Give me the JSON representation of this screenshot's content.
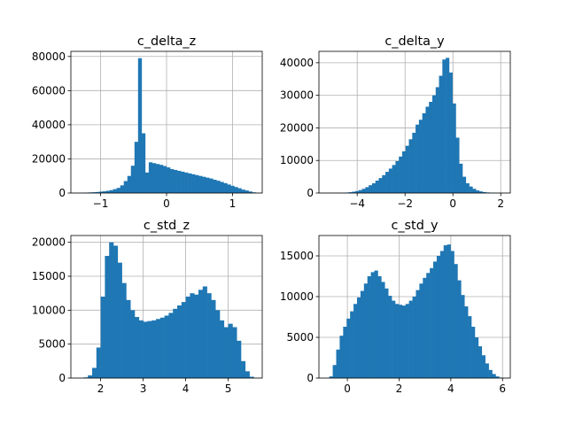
{
  "chart_data": [
    {
      "type": "bar",
      "title": "c_delta_z",
      "xlim": [
        -1.45,
        1.45
      ],
      "ylim": [
        0,
        83000
      ],
      "xticks": [
        -1,
        0,
        1
      ],
      "yticks": [
        0,
        20000,
        40000,
        60000,
        80000
      ],
      "grid": true,
      "bin_edges_range": [
        -1.35,
        1.35
      ],
      "values": [
        100,
        150,
        250,
        350,
        450,
        600,
        800,
        1000,
        1300,
        1700,
        2300,
        3000,
        4500,
        7000,
        10000,
        16000,
        30000,
        79000,
        35000,
        12000,
        18000,
        17500,
        17000,
        16500,
        15800,
        15000,
        14000,
        13500,
        13000,
        12500,
        12000,
        11500,
        11000,
        10500,
        10000,
        9500,
        9000,
        8500,
        7800,
        7200,
        6500,
        5800,
        5000,
        4200,
        3500,
        2800,
        2000,
        1500,
        900,
        400
      ]
    },
    {
      "type": "bar",
      "title": "c_delta_y",
      "xlim": [
        -5.6,
        2.4
      ],
      "ylim": [
        0,
        43500
      ],
      "xticks": [
        -4,
        -2,
        0,
        2
      ],
      "yticks": [
        0,
        10000,
        20000,
        30000,
        40000
      ],
      "grid": true,
      "bin_edges_range": [
        -5.2,
        1.8
      ],
      "values": [
        10,
        20,
        40,
        60,
        100,
        150,
        250,
        400,
        600,
        900,
        1300,
        1800,
        2400,
        3000,
        3800,
        4600,
        5500,
        6500,
        7500,
        8600,
        9800,
        11200,
        12800,
        14500,
        16500,
        18500,
        21000,
        22500,
        24500,
        26500,
        28000,
        30000,
        32500,
        36000,
        41000,
        41500,
        37000,
        27500,
        17000,
        9000,
        5000,
        3000,
        2000,
        1300,
        800,
        500,
        300,
        180,
        100,
        50
      ]
    },
    {
      "type": "bar",
      "title": "c_std_z",
      "xlim": [
        1.3,
        5.8
      ],
      "ylim": [
        0,
        21000
      ],
      "xticks": [
        2,
        3,
        4,
        5
      ],
      "yticks": [
        0,
        5000,
        10000,
        15000,
        20000
      ],
      "grid": true,
      "bin_edges_range": [
        1.6,
        5.6
      ],
      "values": [
        100,
        400,
        1500,
        4500,
        12000,
        18000,
        20000,
        19500,
        17000,
        14000,
        11500,
        10000,
        9000,
        8500,
        8300,
        8400,
        8500,
        8700,
        8900,
        9200,
        9600,
        10200,
        10700,
        11200,
        12000,
        12500,
        12300,
        13000,
        13500,
        12500,
        11500,
        10000,
        8500,
        7500,
        8000,
        7500,
        5500,
        2500,
        1000,
        200
      ]
    },
    {
      "type": "bar",
      "title": "c_std_y",
      "xlim": [
        -1.1,
        6.3
      ],
      "ylim": [
        0,
        17500
      ],
      "xticks": [
        0,
        2,
        4,
        6
      ],
      "yticks": [
        0,
        5000,
        10000,
        15000
      ],
      "grid": true,
      "bin_edges_range": [
        -0.7,
        6.0
      ],
      "values": [
        200,
        1600,
        3500,
        5200,
        6300,
        7300,
        8200,
        9100,
        9900,
        10700,
        11600,
        12500,
        13000,
        13200,
        12500,
        11800,
        11000,
        10100,
        9500,
        9100,
        9000,
        8900,
        9100,
        9500,
        10000,
        10800,
        11600,
        12300,
        12900,
        13500,
        14300,
        15000,
        15600,
        16300,
        16400,
        15600,
        14000,
        12000,
        10200,
        8800,
        7600,
        6300,
        5000,
        3900,
        2800,
        1800,
        1000,
        500,
        200,
        60
      ]
    }
  ]
}
